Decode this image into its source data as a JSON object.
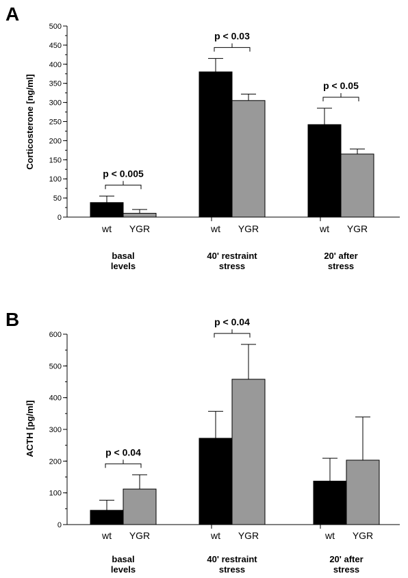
{
  "chart_data": [
    {
      "type": "bar",
      "panel": "A",
      "ylabel": "Corticosterone [ng/ml]",
      "ylim": [
        0,
        500
      ],
      "yticks": [
        0,
        50,
        100,
        150,
        200,
        250,
        300,
        350,
        400,
        450,
        500
      ],
      "groups": [
        {
          "label_lines": [
            "basal",
            "levels"
          ],
          "categories": [
            "wt",
            "YGR"
          ],
          "values": [
            38,
            10
          ],
          "errors": [
            17,
            10
          ],
          "pvalue": "p < 0.005"
        },
        {
          "label_lines": [
            "40' restraint",
            "stress"
          ],
          "categories": [
            "wt",
            "YGR"
          ],
          "values": [
            380,
            305
          ],
          "errors": [
            35,
            17
          ],
          "pvalue": "p < 0.03"
        },
        {
          "label_lines": [
            "20' after",
            "stress"
          ],
          "categories": [
            "wt",
            "YGR"
          ],
          "values": [
            242,
            165
          ],
          "errors": [
            43,
            13
          ],
          "pvalue": "p < 0.05"
        }
      ],
      "series_colors": {
        "wt": "#000000",
        "YGR": "#999999"
      }
    },
    {
      "type": "bar",
      "panel": "B",
      "ylabel": "ACTH [pg/ml]",
      "ylim": [
        0,
        600
      ],
      "yticks": [
        0,
        100,
        200,
        300,
        400,
        500,
        600
      ],
      "groups": [
        {
          "label_lines": [
            "basal",
            "levels"
          ],
          "categories": [
            "wt",
            "YGR"
          ],
          "values": [
            45,
            112
          ],
          "errors": [
            32,
            45
          ],
          "pvalue": "p < 0.04"
        },
        {
          "label_lines": [
            "40' restraint",
            "stress"
          ],
          "categories": [
            "wt",
            "YGR"
          ],
          "values": [
            272,
            458
          ],
          "errors": [
            85,
            110
          ],
          "pvalue": "p < 0.04"
        },
        {
          "label_lines": [
            "20' after",
            "stress"
          ],
          "categories": [
            "wt",
            "YGR"
          ],
          "values": [
            137,
            203
          ],
          "errors": [
            72,
            136
          ],
          "pvalue": ""
        }
      ],
      "series_colors": {
        "wt": "#000000",
        "YGR": "#999999"
      }
    }
  ]
}
